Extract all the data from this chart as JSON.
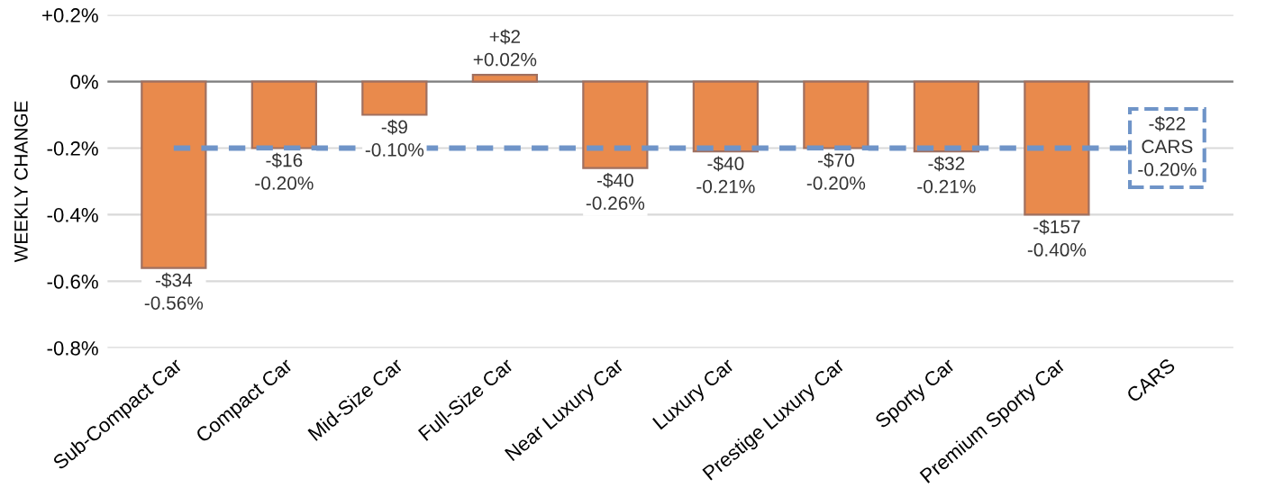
{
  "chart_data": {
    "type": "bar",
    "ylabel": "WEEKLY CHANGE",
    "categories": [
      "Sub-Compact Car",
      "Compact Car",
      "Mid-Size Car",
      "Full-Size Car",
      "Near Luxury Car",
      "Luxury Car",
      "Prestige Luxury Car",
      "Sporty Car",
      "Premium Sporty Car",
      "CARS"
    ],
    "values": [
      -0.56,
      -0.2,
      -0.1,
      0.02,
      -0.26,
      -0.21,
      -0.2,
      -0.21,
      -0.4,
      null
    ],
    "value_labels": [
      "-$34\n-0.56%",
      "-$16\n-0.20%",
      "-$9\n-0.10%",
      "+$2\n+0.02%",
      "-$40\n-0.26%",
      "-$40\n-0.21%",
      "-$70\n-0.20%",
      "-$32\n-0.21%",
      "-$157\n-0.40%",
      null
    ],
    "color": "#e98a4c",
    "ylim": [
      -0.8,
      0.2
    ],
    "yticks": [
      {
        "value": 0.2,
        "label": "+0.2%"
      },
      {
        "value": 0,
        "label": "0%"
      },
      {
        "value": -0.2,
        "label": "-0.2%"
      },
      {
        "value": -0.4,
        "label": "-0.4%"
      },
      {
        "value": -0.6,
        "label": "-0.6%"
      },
      {
        "value": -0.8,
        "label": "-0.8%"
      }
    ],
    "grid": "y",
    "ref_lines": [
      {
        "axis": "y",
        "value": -0.2,
        "label": "-$22\nCARS\n-0.20%",
        "color": "#6f94c8",
        "line_style": "dashed"
      }
    ]
  }
}
